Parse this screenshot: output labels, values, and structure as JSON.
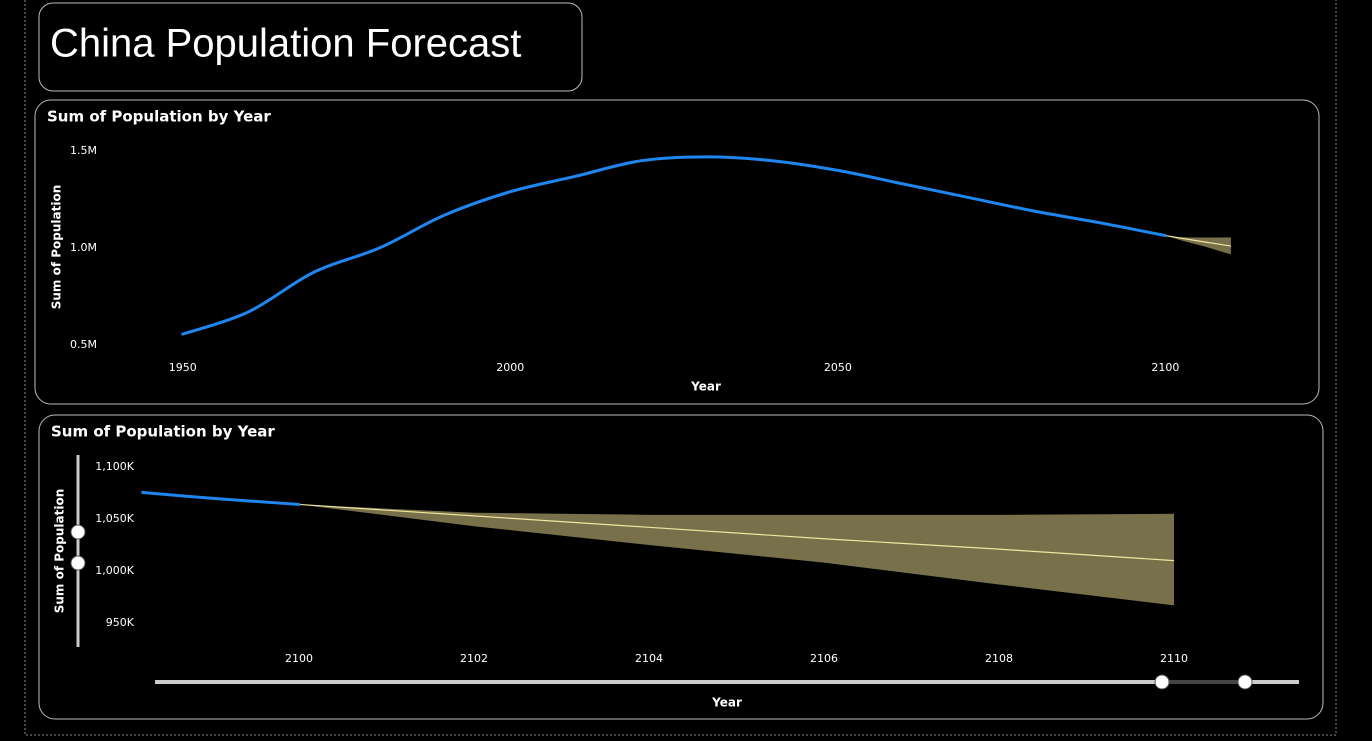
{
  "title": "China Population Forecast",
  "chart_data": [
    {
      "type": "line",
      "title": "Sum of Population by Year",
      "x_label": "Year",
      "y_label": "Sum of Population",
      "x": [
        1950,
        1960,
        1970,
        1980,
        1990,
        2000,
        2010,
        2020,
        2030,
        2040,
        2050,
        2060,
        2070,
        2080,
        2090,
        2100
      ],
      "values": [
        556000,
        670000,
        875000,
        1000000,
        1170000,
        1290000,
        1370000,
        1450000,
        1470000,
        1450000,
        1400000,
        1330000,
        1260000,
        1190000,
        1130000,
        1064000
      ],
      "forecast_x": [
        2100,
        2102,
        2104,
        2106,
        2108,
        2110
      ],
      "forecast_values": [
        1064000,
        1053000,
        1042000,
        1031000,
        1021000,
        1010000
      ],
      "forecast_lower": [
        1064000,
        1043000,
        1025000,
        1008000,
        987000,
        967000
      ],
      "forecast_upper": [
        1064000,
        1056000,
        1054000,
        1054000,
        1054000,
        1055000
      ],
      "color": "#1f86f0",
      "forecast_color": "#f0e6a0",
      "band_color": "#77704a",
      "xlim": [
        1945,
        2112
      ],
      "xticks": [
        1950,
        2000,
        2050,
        2100
      ],
      "ylim": [
        450000,
        1550000
      ],
      "yticks": [
        {
          "value": 500000,
          "label": "0.5M"
        },
        {
          "value": 1000000,
          "label": "1.0M"
        },
        {
          "value": 1500000,
          "label": "1.5M"
        }
      ]
    },
    {
      "type": "line",
      "title": "Sum of Population by Year",
      "x_label": "Year",
      "y_label": "Sum of Population",
      "x": [
        2098,
        2099,
        2100
      ],
      "values": [
        1077000,
        1070000,
        1064000
      ],
      "forecast_x": [
        2100,
        2102,
        2104,
        2106,
        2108,
        2110
      ],
      "forecast_values": [
        1064000,
        1053000,
        1042000,
        1031000,
        1021000,
        1010000
      ],
      "forecast_lower": [
        1064000,
        1043000,
        1025000,
        1008000,
        987000,
        967000
      ],
      "forecast_upper": [
        1064000,
        1056000,
        1054000,
        1054000,
        1054000,
        1055000
      ],
      "color": "#1f86f0",
      "forecast_color": "#f0e6a0",
      "band_color": "#77704a",
      "xlim": [
        2098.2,
        2111.4
      ],
      "xticks": [
        2100,
        2102,
        2104,
        2106,
        2108,
        2110
      ],
      "ylim": [
        930000,
        1110000
      ],
      "yticks": [
        {
          "value": 950000,
          "label": "950K"
        },
        {
          "value": 1000000,
          "label": "1,000K"
        },
        {
          "value": 1050000,
          "label": "1,050K"
        },
        {
          "value": 1100000,
          "label": "1,100K"
        }
      ]
    }
  ]
}
